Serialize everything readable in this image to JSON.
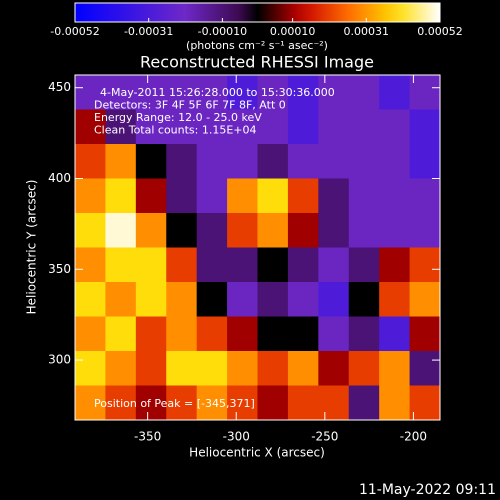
{
  "chart_data": {
    "type": "heatmap",
    "title": "Reconstructed RHESSI Image",
    "x_label": "Heliocentric X (arcsec)",
    "y_label": "Heliocentric Y (arcsec)",
    "xlim": [
      -391,
      -185
    ],
    "ylim": [
      267,
      457
    ],
    "xticks": [
      -350,
      -300,
      -250,
      -200
    ],
    "yticks": [
      300,
      350,
      400,
      450
    ],
    "colorbar": {
      "label": "(photons cm⁻² s⁻¹ asec⁻²)",
      "lim": [
        -0.00052,
        0.00052
      ],
      "ticks": [
        {
          "value": -0.00052,
          "label": "-0.00052"
        },
        {
          "value": -0.00031,
          "label": "-0.00031"
        },
        {
          "value": -0.0001,
          "label": "-0.00010"
        },
        {
          "value": 0.0001,
          "label": "0.00010"
        },
        {
          "value": 0.00031,
          "label": "0.00031"
        },
        {
          "value": 0.00052,
          "label": "0.00052"
        }
      ]
    },
    "annotations": [
      "4-May-2011 15:26:28.000 to 15:30:36.000",
      "Detectors: 3F 4F 5F 6F 7F 8F, Att 0",
      "Energy Range: 12.0 - 25.0 keV",
      "Clean    Total counts: 1.15E+04"
    ],
    "peak_label": "Position of Peak = [-345,371]",
    "footer": "11-May-2022 09:11",
    "values": [
      [
        -0.0002,
        -0.0002,
        -0.0002,
        -0.0002,
        -0.0002,
        -0.0003,
        -0.0002,
        -0.0003,
        -0.0002,
        -0.0002,
        -0.0003,
        -0.0002
      ],
      [
        0.0001,
        -0.0001,
        -0.0002,
        -0.0002,
        -0.0002,
        -0.0002,
        -0.0002,
        -0.0003,
        -0.0002,
        -0.0002,
        -0.0002,
        -0.0003
      ],
      [
        0.0002,
        0.0003,
        0,
        -0.0001,
        -0.0002,
        -0.0002,
        -0.0001,
        -0.0002,
        -0.0002,
        -0.0002,
        -0.0002,
        -0.0003
      ],
      [
        0.0003,
        0.0004,
        0.0001,
        -0.0001,
        -0.0002,
        0.0003,
        0.0004,
        0.0002,
        -0.0001,
        -0.0002,
        -0.0002,
        -0.0002
      ],
      [
        0.0004,
        0.0005,
        0.0003,
        0,
        -0.0001,
        0.0002,
        0.0003,
        0.0001,
        -0.0001,
        -0.0002,
        -0.0002,
        -0.0002
      ],
      [
        0.0003,
        0.0004,
        0.0004,
        0.0002,
        -0.0001,
        -0.0001,
        0,
        -0.0001,
        -0.0002,
        -0.0001,
        0.0001,
        0.0002
      ],
      [
        0.0004,
        0.0003,
        0.0004,
        0.0003,
        0,
        -0.0002,
        -0.0001,
        -0.0002,
        -0.0003,
        0,
        0.0002,
        0.0003
      ],
      [
        0.0003,
        0.0004,
        0.0002,
        0.0003,
        0.0002,
        0.0001,
        0,
        0,
        -0.0002,
        -0.0001,
        -0.0003,
        0.0001
      ],
      [
        0.0004,
        0.0003,
        0.0002,
        0.0004,
        0.0004,
        0.0003,
        0.0002,
        0.0003,
        0.0001,
        0.0002,
        0.0003,
        -0.0001
      ],
      [
        0.0003,
        0.0002,
        0.0001,
        0.0002,
        0.0003,
        0.0002,
        0.0001,
        0.0002,
        0.0002,
        -0.0001,
        0.0003,
        0.0002
      ]
    ]
  }
}
